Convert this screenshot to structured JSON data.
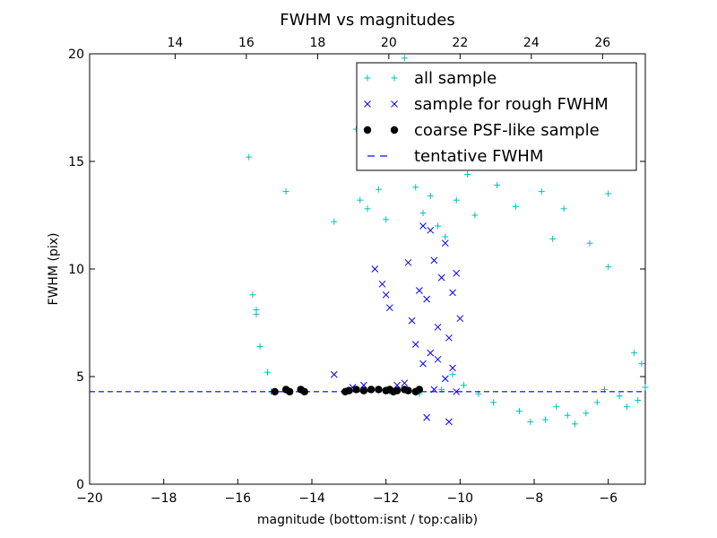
{
  "chart_data": {
    "type": "scatter",
    "title": "FWHM vs magnitudes",
    "xlabel": "magnitude (bottom:isnt / top:calib)",
    "ylabel": "FWHM (pix)",
    "xlim": [
      -20,
      -5
    ],
    "ylim": [
      0,
      20
    ],
    "x_ticks": [
      -20,
      -18,
      -16,
      -14,
      -12,
      -10,
      -8,
      -6
    ],
    "y_ticks": [
      0,
      5,
      10,
      15,
      20
    ],
    "top_xlim": [
      11.6,
      27.2
    ],
    "top_x_ticks": [
      14,
      16,
      18,
      20,
      22,
      24,
      26
    ],
    "grid": false,
    "legend_position": "top-right",
    "tentative_fwhm": 4.3,
    "series": [
      {
        "name": "all sample",
        "marker": "plus",
        "color": "#00bfbf",
        "points": [
          [
            -15.7,
            15.2
          ],
          [
            -15.6,
            8.8
          ],
          [
            -15.5,
            8.1
          ],
          [
            -15.5,
            7.9
          ],
          [
            -15.4,
            6.4
          ],
          [
            -15.2,
            5.2
          ],
          [
            -14.7,
            13.6
          ],
          [
            -13.4,
            12.2
          ],
          [
            -12.8,
            16.5
          ],
          [
            -12.7,
            13.2
          ],
          [
            -12.5,
            12.8
          ],
          [
            -12.2,
            13.7
          ],
          [
            -12.0,
            12.3
          ],
          [
            -11.6,
            14.8
          ],
          [
            -11.4,
            15.2
          ],
          [
            -11.2,
            13.8
          ],
          [
            -11.0,
            12.6
          ],
          [
            -10.8,
            13.4
          ],
          [
            -10.6,
            12.0
          ],
          [
            -10.4,
            11.5
          ],
          [
            -10.1,
            13.2
          ],
          [
            -9.8,
            14.4
          ],
          [
            -9.6,
            12.5
          ],
          [
            -9.3,
            15.6
          ],
          [
            -9.0,
            13.9
          ],
          [
            -8.7,
            16.3
          ],
          [
            -8.5,
            12.9
          ],
          [
            -8.2,
            14.8
          ],
          [
            -8.0,
            17.8
          ],
          [
            -7.8,
            13.6
          ],
          [
            -7.5,
            11.4
          ],
          [
            -7.2,
            12.8
          ],
          [
            -6.5,
            11.2
          ],
          [
            -6.0,
            13.5
          ],
          [
            -6.0,
            10.1
          ],
          [
            -5.3,
            6.1
          ],
          [
            -5.1,
            5.6
          ],
          [
            -5.0,
            4.5
          ],
          [
            -5.2,
            3.9
          ],
          [
            -5.5,
            3.6
          ],
          [
            -5.7,
            4.1
          ],
          [
            -6.1,
            4.4
          ],
          [
            -6.3,
            3.8
          ],
          [
            -6.6,
            3.3
          ],
          [
            -6.9,
            2.8
          ],
          [
            -7.1,
            3.2
          ],
          [
            -7.4,
            3.6
          ],
          [
            -7.7,
            3.0
          ],
          [
            -8.1,
            2.9
          ],
          [
            -8.4,
            3.4
          ],
          [
            -9.1,
            3.8
          ],
          [
            -9.5,
            4.2
          ],
          [
            -9.9,
            4.6
          ],
          [
            -10.2,
            5.1
          ],
          [
            -10.5,
            4.4
          ],
          [
            -11.1,
            4.2
          ],
          [
            -11.9,
            4.3
          ],
          [
            -13.1,
            4.3
          ],
          [
            -14.3,
            4.4
          ],
          [
            -15.1,
            4.3
          ],
          [
            -11.5,
            19.8
          ],
          [
            -10.9,
            18.8
          ],
          [
            -9.7,
            18.2
          ],
          [
            -10.3,
            16.7
          ],
          [
            -11.8,
            17.2
          ]
        ]
      },
      {
        "name": "sample for rough FWHM",
        "marker": "x",
        "color": "#0000ff",
        "points": [
          [
            -13.4,
            5.1
          ],
          [
            -12.9,
            4.5
          ],
          [
            -12.6,
            4.6
          ],
          [
            -12.3,
            10.0
          ],
          [
            -12.1,
            9.3
          ],
          [
            -12.0,
            8.8
          ],
          [
            -11.9,
            8.2
          ],
          [
            -11.7,
            4.6
          ],
          [
            -11.5,
            4.7
          ],
          [
            -11.3,
            7.6
          ],
          [
            -11.2,
            6.5
          ],
          [
            -11.1,
            9.0
          ],
          [
            -11.0,
            12.0
          ],
          [
            -10.9,
            8.6
          ],
          [
            -10.8,
            11.8
          ],
          [
            -10.7,
            10.4
          ],
          [
            -10.6,
            7.3
          ],
          [
            -10.5,
            9.6
          ],
          [
            -10.4,
            11.2
          ],
          [
            -10.3,
            6.8
          ],
          [
            -10.2,
            8.9
          ],
          [
            -10.1,
            9.8
          ],
          [
            -10.0,
            7.7
          ],
          [
            -10.2,
            5.4
          ],
          [
            -10.4,
            4.9
          ],
          [
            -10.6,
            5.8
          ],
          [
            -10.8,
            6.1
          ],
          [
            -11.0,
            5.6
          ],
          [
            -10.9,
            3.1
          ],
          [
            -10.3,
            2.9
          ],
          [
            -11.4,
            10.3
          ],
          [
            -10.7,
            4.4
          ],
          [
            -10.1,
            4.3
          ]
        ]
      },
      {
        "name": "coarse PSF-like sample",
        "marker": "dot",
        "color": "#000000",
        "points": [
          [
            -15.0,
            4.3
          ],
          [
            -14.7,
            4.4
          ],
          [
            -14.6,
            4.3
          ],
          [
            -14.3,
            4.4
          ],
          [
            -14.2,
            4.3
          ],
          [
            -13.1,
            4.3
          ],
          [
            -13.0,
            4.35
          ],
          [
            -12.8,
            4.4
          ],
          [
            -12.6,
            4.35
          ],
          [
            -12.4,
            4.4
          ],
          [
            -12.2,
            4.4
          ],
          [
            -12.0,
            4.35
          ],
          [
            -11.9,
            4.4
          ],
          [
            -11.8,
            4.3
          ],
          [
            -11.7,
            4.35
          ],
          [
            -11.5,
            4.4
          ],
          [
            -11.4,
            4.35
          ],
          [
            -11.2,
            4.3
          ],
          [
            -11.1,
            4.4
          ]
        ]
      }
    ]
  },
  "legend": {
    "items": [
      {
        "label": "all sample",
        "marker": "plus",
        "color": "#00bfbf"
      },
      {
        "label": "sample for rough FWHM",
        "marker": "x",
        "color": "#0000ff"
      },
      {
        "label": "coarse PSF-like sample",
        "marker": "dot",
        "color": "#000000"
      },
      {
        "label": "tentative FWHM",
        "marker": "dash",
        "color": "#0000ff"
      }
    ]
  }
}
